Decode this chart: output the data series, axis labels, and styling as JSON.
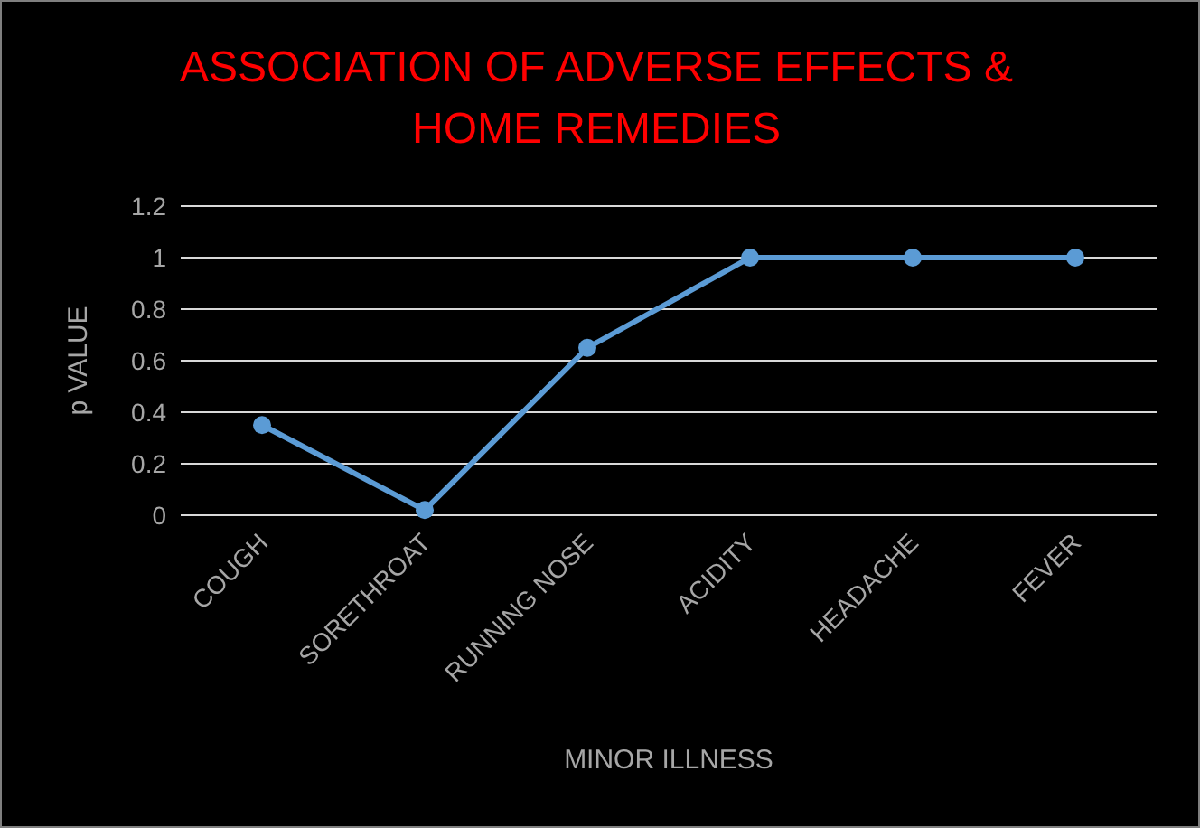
{
  "chart_data": {
    "type": "line",
    "title": "ASSOCIATION OF ADVERSE EFFECTS & HOME REMEDIES",
    "xlabel": "MINOR ILLNESS",
    "ylabel": "p VALUE",
    "categories": [
      "COUGH",
      "SORETHROAT",
      "RUNNING NOSE",
      "ACIDITY",
      "HEADACHE",
      "FEVER"
    ],
    "series": [
      {
        "color": "#5b9bd5",
        "values": [
          0.35,
          0.02,
          0.65,
          1,
          1,
          1
        ]
      }
    ],
    "ylim": [
      0,
      1.2
    ],
    "yticks": [
      0,
      0.2,
      0.4,
      0.6,
      0.8,
      1,
      1.2
    ],
    "grid": "y",
    "marker": "circle",
    "line_style": "solid"
  }
}
